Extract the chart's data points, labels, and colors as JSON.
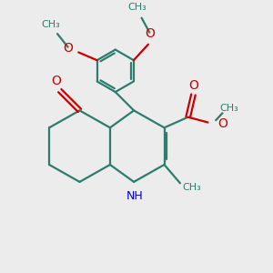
{
  "bg_color": "#ececec",
  "bond_color": "#2d7d6e",
  "o_color": "#cc0000",
  "n_color": "#0000cc",
  "linewidth": 1.6,
  "figsize": [
    3.0,
    3.0
  ],
  "dpi": 100,
  "xlim": [
    0,
    10
  ],
  "ylim": [
    0,
    10
  ]
}
